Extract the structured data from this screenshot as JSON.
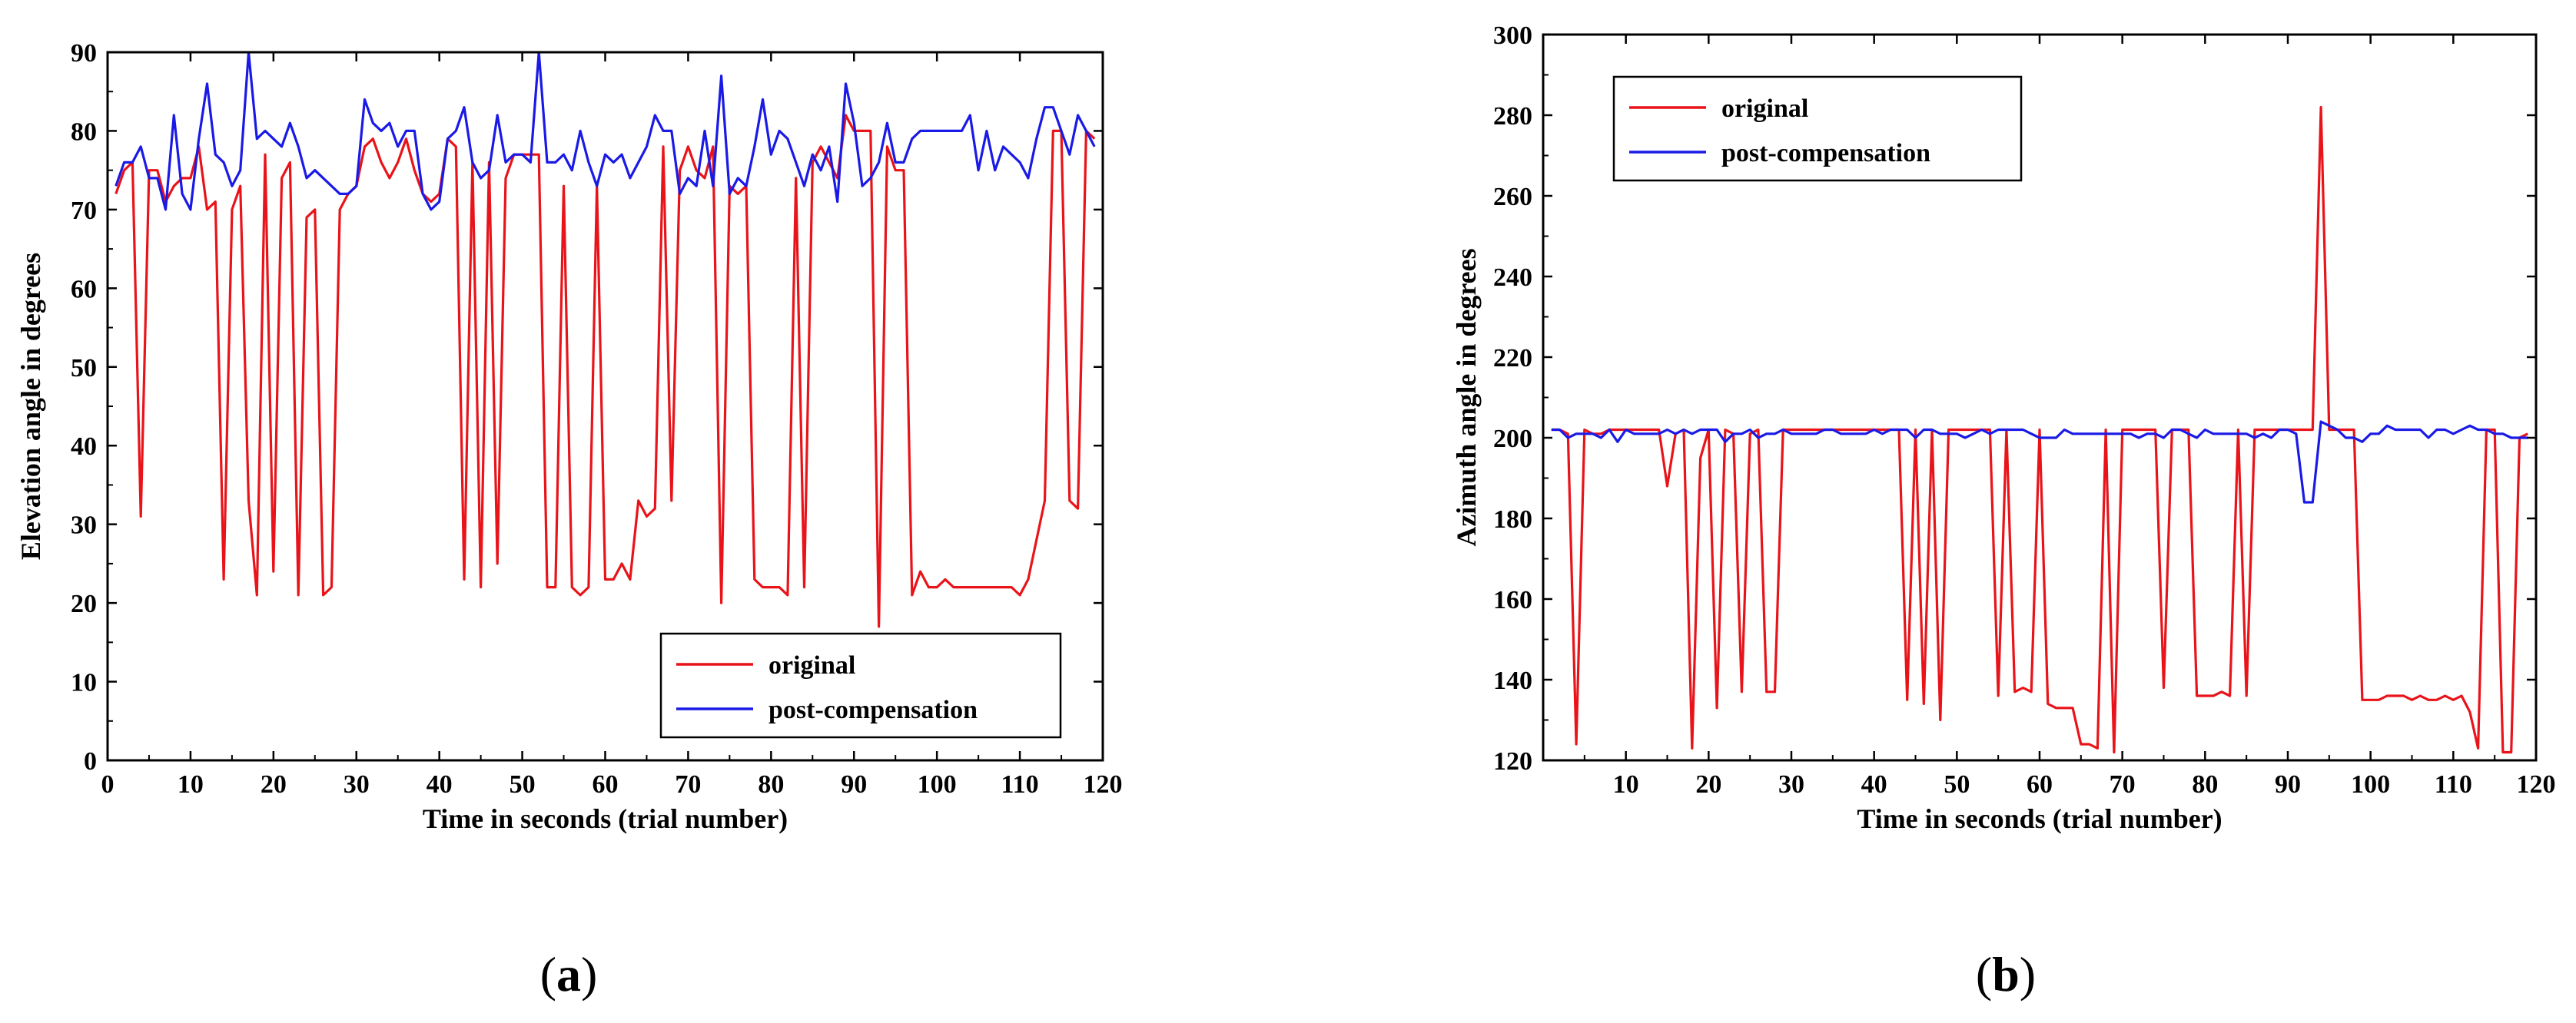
{
  "colors": {
    "original": "#e8141a",
    "post": "#1a1ae6"
  },
  "chart_data": [
    {
      "id": "a",
      "caption": "(a)",
      "caption_letter": "a",
      "type": "line",
      "xlabel": "Time in seconds (trial number)",
      "ylabel": "Elevation angle in degrees",
      "xlim": [
        0,
        120
      ],
      "ylim": [
        0,
        90
      ],
      "xticks": [
        0,
        10,
        20,
        30,
        40,
        50,
        60,
        70,
        80,
        90,
        100,
        110,
        120
      ],
      "yticks": [
        0,
        10,
        20,
        30,
        40,
        50,
        60,
        70,
        80,
        90
      ],
      "legend_position": "bottom-right",
      "series": [
        {
          "name": "original",
          "color": "#e8141a",
          "values": [
            72,
            75,
            76,
            31,
            75,
            75,
            71,
            73,
            74,
            74,
            78,
            70,
            71,
            23,
            70,
            73,
            33,
            21,
            77,
            24,
            74,
            76,
            21,
            69,
            70,
            21,
            22,
            70,
            72,
            73,
            78,
            79,
            76,
            74,
            76,
            79,
            75,
            72,
            71,
            72,
            79,
            78,
            23,
            76,
            22,
            76,
            25,
            74,
            77,
            77,
            77,
            77,
            22,
            22,
            73,
            22,
            21,
            22,
            73,
            23,
            23,
            25,
            23,
            33,
            31,
            32,
            78,
            33,
            75,
            78,
            75,
            74,
            78,
            20,
            73,
            72,
            73,
            23,
            22,
            22,
            22,
            21,
            74,
            22,
            76,
            78,
            76,
            74,
            82,
            80,
            80,
            80,
            17,
            78,
            75,
            75,
            21,
            24,
            22,
            22,
            23,
            22,
            22,
            22,
            22,
            22,
            22,
            22,
            22,
            21,
            23,
            28,
            33,
            80,
            80,
            33,
            32,
            80,
            79
          ]
        },
        {
          "name": "post-compensation",
          "color": "#1a1ae6",
          "values": [
            73,
            76,
            76,
            78,
            74,
            74,
            70,
            82,
            72,
            70,
            79,
            86,
            77,
            76,
            73,
            75,
            90,
            79,
            80,
            79,
            78,
            81,
            78,
            74,
            75,
            74,
            73,
            72,
            72,
            73,
            84,
            81,
            80,
            81,
            78,
            80,
            80,
            72,
            70,
            71,
            79,
            80,
            83,
            76,
            74,
            75,
            82,
            76,
            77,
            77,
            76,
            90,
            76,
            76,
            77,
            75,
            80,
            76,
            73,
            77,
            76,
            77,
            74,
            76,
            78,
            82,
            80,
            80,
            72,
            74,
            73,
            80,
            73,
            87,
            72,
            74,
            73,
            78,
            84,
            77,
            80,
            79,
            76,
            73,
            77,
            75,
            78,
            71,
            86,
            81,
            73,
            74,
            76,
            81,
            76,
            76,
            79,
            80,
            80,
            80,
            80,
            80,
            80,
            82,
            75,
            80,
            75,
            78,
            77,
            76,
            74,
            79,
            83,
            83,
            80,
            77,
            82,
            80,
            78
          ]
        }
      ]
    },
    {
      "id": "b",
      "caption": "(b)",
      "caption_letter": "b",
      "type": "line",
      "xlabel": "Time in seconds (trial number)",
      "ylabel": "Azimuth angle in degrees",
      "xlim": [
        0,
        120
      ],
      "ylim": [
        120,
        300
      ],
      "xticks": [
        10,
        20,
        30,
        40,
        50,
        60,
        70,
        80,
        90,
        100,
        110,
        120
      ],
      "yticks": [
        120,
        140,
        160,
        180,
        200,
        220,
        240,
        260,
        280,
        300
      ],
      "legend_position": "top-left",
      "series": [
        {
          "name": "original",
          "color": "#e8141a",
          "values": [
            202,
            202,
            201,
            124,
            202,
            201,
            201,
            202,
            202,
            202,
            202,
            202,
            202,
            202,
            188,
            201,
            202,
            123,
            195,
            202,
            133,
            202,
            201,
            137,
            201,
            202,
            137,
            137,
            202,
            202,
            202,
            202,
            202,
            202,
            202,
            202,
            202,
            202,
            202,
            202,
            202,
            202,
            202,
            135,
            202,
            134,
            202,
            130,
            202,
            202,
            202,
            202,
            202,
            202,
            136,
            202,
            137,
            138,
            137,
            202,
            134,
            133,
            133,
            133,
            124,
            124,
            123,
            202,
            122,
            202,
            202,
            202,
            202,
            202,
            138,
            202,
            202,
            202,
            136,
            136,
            136,
            137,
            136,
            202,
            136,
            202,
            202,
            202,
            202,
            202,
            202,
            202,
            202,
            282,
            202,
            202,
            202,
            202,
            135,
            135,
            135,
            136,
            136,
            136,
            135,
            136,
            135,
            135,
            136,
            135,
            136,
            132,
            123,
            202,
            202,
            122,
            122,
            200,
            201
          ]
        },
        {
          "name": "post-compensation",
          "color": "#1a1ae6",
          "values": [
            202,
            202,
            200,
            201,
            201,
            201,
            200,
            202,
            199,
            202,
            201,
            201,
            201,
            201,
            202,
            201,
            202,
            201,
            202,
            202,
            202,
            199,
            201,
            201,
            202,
            200,
            201,
            201,
            202,
            201,
            201,
            201,
            201,
            202,
            202,
            201,
            201,
            201,
            201,
            202,
            201,
            202,
            202,
            202,
            200,
            202,
            202,
            201,
            201,
            201,
            200,
            201,
            202,
            201,
            202,
            202,
            202,
            202,
            201,
            200,
            200,
            200,
            202,
            201,
            201,
            201,
            201,
            201,
            201,
            201,
            201,
            200,
            201,
            201,
            200,
            202,
            202,
            201,
            200,
            202,
            201,
            201,
            201,
            201,
            201,
            200,
            201,
            200,
            202,
            202,
            201,
            184,
            184,
            204,
            203,
            202,
            200,
            200,
            199,
            201,
            201,
            203,
            202,
            202,
            202,
            202,
            200,
            202,
            202,
            201,
            202,
            203,
            202,
            202,
            201,
            201,
            200,
            200,
            200
          ]
        }
      ]
    }
  ]
}
